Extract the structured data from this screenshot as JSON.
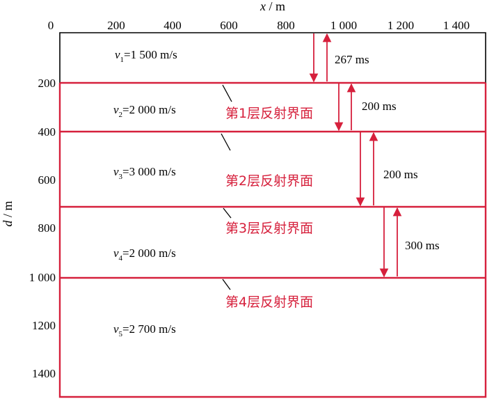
{
  "x_axis": {
    "title_var": "x",
    "title_unit": "m",
    "ticks": [
      "0",
      "200",
      "400",
      "600",
      "800",
      "1 000",
      "1 200",
      "1 400"
    ]
  },
  "d_axis": {
    "title_var": "d",
    "title_unit": "m",
    "ticks": [
      "200",
      "400",
      "600",
      "800",
      "1 000",
      "1200",
      "1400"
    ]
  },
  "layers": [
    {
      "var": "v",
      "sub": "1",
      "value": "=1 500 m/s"
    },
    {
      "var": "v",
      "sub": "2",
      "value": "=2 000 m/s"
    },
    {
      "var": "v",
      "sub": "3",
      "value": "=3 000 m/s"
    },
    {
      "var": "v",
      "sub": "4",
      "value": "=2 000 m/s"
    },
    {
      "var": "v",
      "sub": "5",
      "value": "=2 700 m/s"
    }
  ],
  "interfaces": [
    {
      "label": "第1层反射界面"
    },
    {
      "label": "第2层反射界面"
    },
    {
      "label": "第3层反射界面"
    },
    {
      "label": "第4层反射界面"
    }
  ],
  "travel_times": [
    {
      "label": "267 ms"
    },
    {
      "label": "200 ms"
    },
    {
      "label": "200 ms"
    },
    {
      "label": "300 ms"
    }
  ],
  "colors": {
    "interface": "#d6203c",
    "frame": "#000000"
  }
}
